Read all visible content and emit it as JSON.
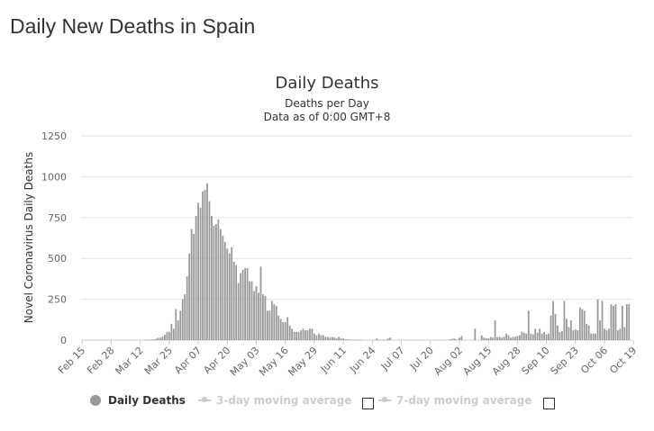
{
  "page": {
    "title": "Daily New Deaths in Spain"
  },
  "legend": {
    "items": [
      {
        "label": "Daily Deaths",
        "active": true,
        "color": "#999999"
      },
      {
        "label": "3-day moving average",
        "active": false,
        "color": "#cccccc"
      },
      {
        "label": "7-day moving average",
        "active": false,
        "color": "#cccccc"
      }
    ]
  },
  "chart_data": {
    "type": "bar",
    "title": "Daily Deaths",
    "subtitle": [
      "Deaths per Day",
      "Data as of 0:00 GMT+8"
    ],
    "xlabel": "",
    "ylabel": "Novel Coronavirus Daily Deaths",
    "ylim": [
      0,
      1250
    ],
    "yticks": [
      0,
      250,
      500,
      750,
      1000,
      1250
    ],
    "grid": true,
    "bar_color": "#999999",
    "x_tick_labels": [
      "Feb 15",
      "Feb 28",
      "Mar 12",
      "Mar 25",
      "Apr 07",
      "Apr 20",
      "May 03",
      "May 16",
      "May 29",
      "Jun 11",
      "Jun 24",
      "Jul 07",
      "Jul 20",
      "Aug 02",
      "Aug 15",
      "Aug 28",
      "Sep 10",
      "Sep 23",
      "Oct 06",
      "Oct 19"
    ],
    "x_start_label": "Feb 15",
    "series": [
      {
        "name": "Daily Deaths",
        "values": [
          0,
          0,
          0,
          0,
          0,
          0,
          0,
          0,
          0,
          0,
          0,
          0,
          0,
          0,
          0,
          0,
          0,
          0,
          0,
          0,
          0,
          0,
          0,
          0,
          0,
          0,
          0,
          0,
          1,
          2,
          2,
          3,
          5,
          8,
          14,
          15,
          22,
          33,
          48,
          50,
          100,
          70,
          190,
          120,
          180,
          250,
          280,
          390,
          530,
          680,
          650,
          760,
          840,
          810,
          910,
          920,
          960,
          850,
          760,
          700,
          710,
          740,
          680,
          640,
          600,
          560,
          530,
          570,
          480,
          460,
          350,
          410,
          430,
          440,
          440,
          360,
          360,
          300,
          330,
          290,
          450,
          280,
          270,
          180,
          180,
          240,
          220,
          210,
          150,
          130,
          110,
          110,
          140,
          90,
          70,
          50,
          50,
          50,
          60,
          70,
          60,
          60,
          70,
          70,
          40,
          30,
          40,
          30,
          30,
          20,
          20,
          15,
          20,
          15,
          10,
          20,
          10,
          10,
          5,
          5,
          3,
          2,
          2,
          1,
          1,
          1,
          0,
          0,
          0,
          0,
          0,
          2,
          10,
          1,
          0,
          1,
          1,
          10,
          15,
          0,
          0,
          0,
          0,
          0,
          0,
          0,
          0,
          0,
          0,
          0,
          0,
          0,
          0,
          0,
          0,
          0,
          0,
          0,
          0,
          0,
          0,
          0,
          0,
          0,
          0,
          5,
          10,
          8,
          2,
          15,
          25,
          0,
          0,
          0,
          0,
          0,
          70,
          0,
          0,
          30,
          15,
          12,
          10,
          20,
          15,
          120,
          18,
          20,
          15,
          20,
          40,
          30,
          15,
          20,
          20,
          25,
          30,
          50,
          45,
          40,
          180,
          40,
          35,
          70,
          45,
          70,
          40,
          50,
          35,
          40,
          150,
          240,
          160,
          90,
          50,
          55,
          240,
          130,
          80,
          120,
          60,
          65,
          60,
          200,
          190,
          180,
          100,
          90,
          40,
          40,
          40,
          250,
          120,
          240,
          70,
          60,
          70,
          220,
          210,
          220,
          60,
          70,
          210,
          80,
          220,
          220,
          0
        ]
      }
    ]
  }
}
